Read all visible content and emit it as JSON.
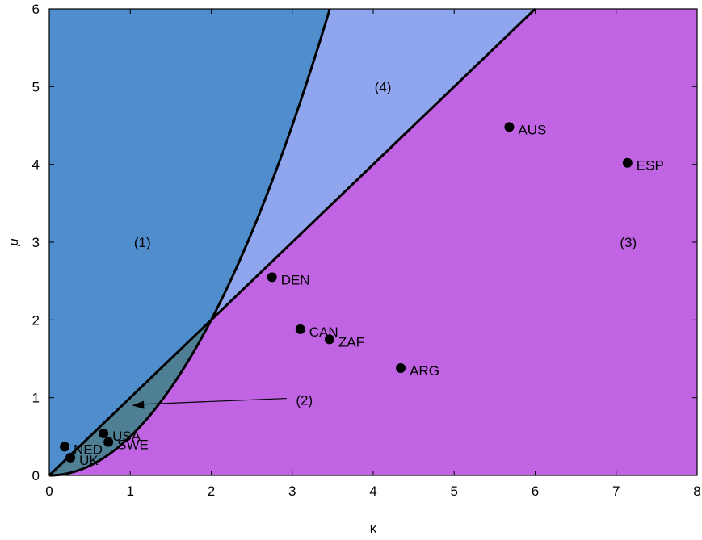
{
  "chart_data": {
    "type": "scatter",
    "title": "",
    "xlabel": "κ",
    "ylabel": "μ",
    "xlim": [
      0,
      8
    ],
    "ylim": [
      0,
      6
    ],
    "xticks": [
      "0",
      "1",
      "2",
      "3",
      "4",
      "5",
      "6",
      "7",
      "8"
    ],
    "yticks": [
      "0",
      "1",
      "2",
      "3",
      "4",
      "5",
      "6"
    ],
    "grid": false,
    "boundaries": [
      {
        "equation": "mu = kappa",
        "domain": [
          0,
          6
        ]
      },
      {
        "equation": "mu = kappa^2 / 2",
        "domain": [
          0,
          3.464
        ]
      }
    ],
    "regions": [
      {
        "label": "(1)",
        "color": "#4f8dcc",
        "x": 1.15,
        "y": 3.0
      },
      {
        "label": "(2)",
        "color": "#4f7f94",
        "x": 3.15,
        "y": 0.97,
        "arrow_to": [
          1.02,
          0.9
        ]
      },
      {
        "label": "(3)",
        "color": "#c064e4",
        "x": 7.15,
        "y": 3.0
      },
      {
        "label": "(4)",
        "color": "#8fa6ee",
        "x": 4.12,
        "y": 5.0
      }
    ],
    "points": [
      {
        "label": "AUS",
        "x": 5.68,
        "y": 4.48
      },
      {
        "label": "ESP",
        "x": 7.14,
        "y": 4.02
      },
      {
        "label": "DEN",
        "x": 2.75,
        "y": 2.55
      },
      {
        "label": "CAN",
        "x": 3.1,
        "y": 1.88
      },
      {
        "label": "ZAF",
        "x": 3.46,
        "y": 1.75
      },
      {
        "label": "ARG",
        "x": 4.34,
        "y": 1.38
      },
      {
        "label": "NED",
        "x": 0.19,
        "y": 0.37
      },
      {
        "label": "USA",
        "x": 0.67,
        "y": 0.54
      },
      {
        "label": "SWE",
        "x": 0.73,
        "y": 0.43
      },
      {
        "label": "UK",
        "x": 0.26,
        "y": 0.23
      }
    ]
  }
}
